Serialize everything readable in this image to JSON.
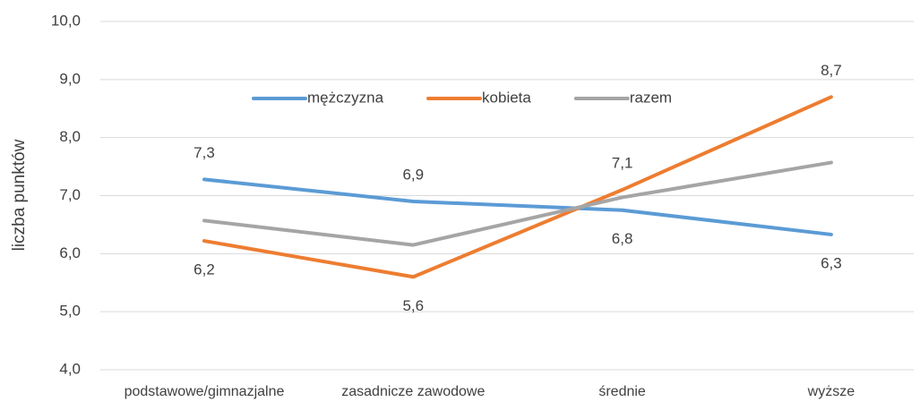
{
  "chart_data": {
    "type": "line",
    "y_label": "liczba punktów",
    "categories": [
      "podstawowe/gimnazjalne",
      "zasadnicze zawodowe",
      "średnie",
      "wyższe"
    ],
    "series": [
      {
        "name": "mężczyzna",
        "color": "#5b9bd5",
        "values": [
          7.28,
          6.9,
          6.75,
          6.33
        ],
        "value_labels": [
          "7,3",
          "6,9",
          "6,8",
          "6,3"
        ]
      },
      {
        "name": "kobieta",
        "color": "#ed7d31",
        "values": [
          6.22,
          5.6,
          7.1,
          8.7
        ],
        "value_labels": [
          "6,2",
          "5,6",
          "7,1",
          "8,7"
        ]
      },
      {
        "name": "razem",
        "color": "#a5a5a5",
        "values": [
          6.57,
          6.15,
          6.97,
          7.57
        ]
      }
    ],
    "ylim": [
      4,
      10
    ],
    "yticks": [
      {
        "value": 4,
        "label": "4,0"
      },
      {
        "value": 5,
        "label": "5,0"
      },
      {
        "value": 6,
        "label": "6,0"
      },
      {
        "value": 7,
        "label": "7,0"
      },
      {
        "value": 8,
        "label": "8,0"
      },
      {
        "value": 9,
        "label": "9,0"
      },
      {
        "value": 10,
        "label": "10,0"
      }
    ],
    "grid": true,
    "legend": "top"
  }
}
